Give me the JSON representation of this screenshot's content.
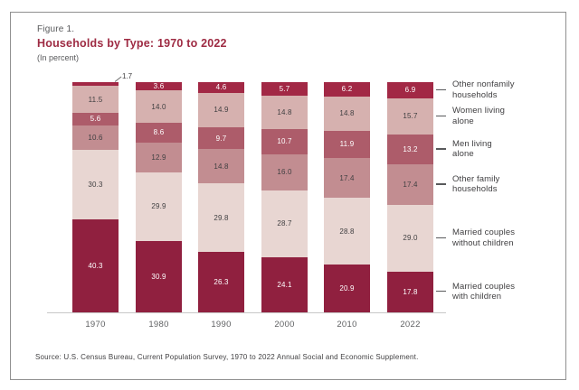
{
  "figure": {
    "label": "Figure 1.",
    "title": "Households by Type: 1970 to 2022",
    "subtitle": "(In percent)"
  },
  "source": "Source: U.S. Census Bureau, Current Population Survey, 1970 to 2022 Annual Social and Economic Supplement.",
  "chart_data": {
    "type": "bar",
    "stacked": true,
    "unit": "percent",
    "title": "Households by Type: 1970 to 2022",
    "categories": [
      "1970",
      "1980",
      "1990",
      "2000",
      "2010",
      "2022"
    ],
    "series": [
      {
        "name": "Married couples with children",
        "color": "#90203F",
        "text_color": "#FFFFFF",
        "values": [
          40.3,
          30.9,
          26.3,
          24.1,
          20.9,
          17.8
        ]
      },
      {
        "name": "Married couples without children",
        "color": "#E8D6D2",
        "text_color": "#414042",
        "values": [
          30.3,
          29.9,
          29.8,
          28.7,
          28.8,
          29.0
        ]
      },
      {
        "name": "Other family households",
        "color": "#C28D91",
        "text_color": "#414042",
        "values": [
          10.6,
          12.9,
          14.8,
          16.0,
          17.4,
          17.4
        ]
      },
      {
        "name": "Men living alone",
        "color": "#AD5C6A",
        "text_color": "#FFFFFF",
        "values": [
          5.6,
          8.6,
          9.7,
          10.7,
          11.9,
          13.2
        ]
      },
      {
        "name": "Women living alone",
        "color": "#D6B1AF",
        "text_color": "#414042",
        "values": [
          11.5,
          14.0,
          14.9,
          14.8,
          14.8,
          15.7
        ]
      },
      {
        "name": "Other nonfamily households",
        "color": "#A22845",
        "text_color": "#FFFFFF",
        "values": [
          1.7,
          3.6,
          4.6,
          5.7,
          6.2,
          6.9
        ]
      }
    ],
    "legend": [
      {
        "series": "Other nonfamily households",
        "lines": [
          "Other nonfamily",
          "households"
        ]
      },
      {
        "series": "Women living alone",
        "lines": [
          "Women living",
          "alone"
        ]
      },
      {
        "series": "Men living alone",
        "lines": [
          "Men living",
          "alone"
        ]
      },
      {
        "series": "Other family households",
        "lines": [
          "Other family",
          "households"
        ]
      },
      {
        "series": "Married couples without children",
        "lines": [
          "Married couples",
          "without children"
        ]
      },
      {
        "series": "Married couples with children",
        "lines": [
          "Married couples",
          "with children"
        ]
      }
    ],
    "legend_position": "right",
    "ylim": [
      0,
      100
    ],
    "grid": false,
    "value_labels": "inside segments, one decimal; values < 2.5 called out outside with leader line"
  }
}
